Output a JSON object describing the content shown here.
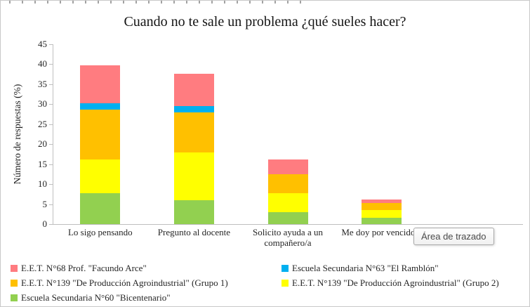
{
  "tooltip": {
    "label": "Área de trazado"
  },
  "chart_data": {
    "type": "bar",
    "stacked": true,
    "title": "Cuando no te sale un problema ¿qué sueles hacer?",
    "xlabel": "",
    "ylabel": "Número de respuestas (%)",
    "ylim": [
      0,
      45
    ],
    "y_ticks": [
      0,
      5,
      10,
      15,
      20,
      25,
      30,
      35,
      40,
      45
    ],
    "grid": false,
    "legend_position": "bottom",
    "slot_count": 5,
    "categories": [
      "Lo sigo pensando",
      "Pregunto al docente",
      "Solicito ayuda a un compañero/a",
      "Me doy por vencido/a"
    ],
    "series": [
      {
        "name": "Escuela Secundaria N°60 \"Bicentenario\"",
        "color": "#92D050",
        "values": [
          7.7,
          6.0,
          3.0,
          1.5
        ]
      },
      {
        "name": "E.E.T. N°139 \"De Producción Agroindustrial\" (Grupo 2)",
        "color": "#FFFF00",
        "values": [
          8.4,
          12.0,
          4.8,
          2.0
        ]
      },
      {
        "name": "E.E.T. N°139 \"De Producción Agroindustrial\" (Grupo 1)",
        "color": "#FFC000",
        "values": [
          12.6,
          10.0,
          4.7,
          1.7
        ]
      },
      {
        "name": "Escuela Secundaria N°63 \"El Ramblón\"",
        "color": "#00B0F0",
        "values": [
          1.5,
          1.5,
          0,
          0
        ]
      },
      {
        "name": "E.E.T. N°68 Prof. \"Facundo Arce\"",
        "color": "#FF7C80",
        "values": [
          9.5,
          8.2,
          3.7,
          0.9
        ]
      }
    ]
  },
  "legend": {
    "items": [
      {
        "label": "E.E.T. N°68 Prof. \"Facundo Arce\"",
        "color": "#FF7C80"
      },
      {
        "label": "Escuela Secundaria N°63 \"El Ramblón\"",
        "color": "#00B0F0"
      },
      {
        "label": "E.E.T. N°139 \"De Producción Agroindustrial\" (Grupo 1)",
        "color": "#FFC000"
      },
      {
        "label": "E.E.T. N°139 \"De Producción Agroindustrial\" (Grupo 2)",
        "color": "#FFFF00"
      },
      {
        "label": "Escuela Secundaria N°60 \"Bicentenario\"",
        "color": "#92D050"
      }
    ]
  }
}
